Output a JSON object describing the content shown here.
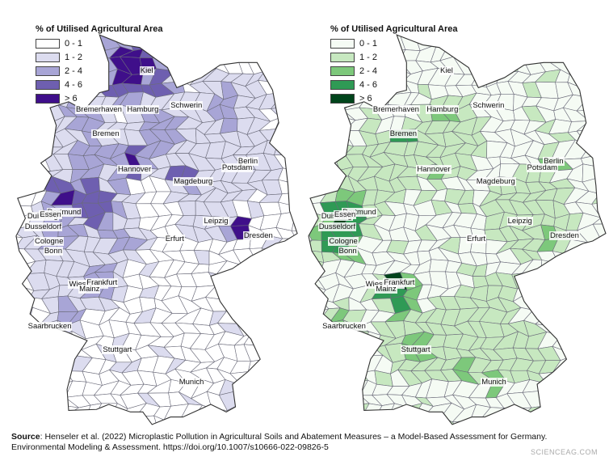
{
  "legend": {
    "title": "% of Utilised Agricultural Area",
    "classes": [
      "0 - 1",
      "1 - 2",
      "2 - 4",
      "4 - 6",
      "> 6"
    ]
  },
  "palettes": {
    "purple": [
      "#ffffff",
      "#dcdcef",
      "#a8a5d6",
      "#6e5fb0",
      "#3f0f8a"
    ],
    "green": [
      "#f5fbf4",
      "#c7e8c0",
      "#7dc87b",
      "#2f9a55",
      "#00441b"
    ]
  },
  "maps": [
    {
      "id": "left",
      "cities": [
        {
          "name": "Kiel",
          "lon": 10.13,
          "lat": 54.32
        },
        {
          "name": "Hamburg",
          "lon": 10.0,
          "lat": 53.55
        },
        {
          "name": "Schwerin",
          "lon": 11.41,
          "lat": 53.63
        },
        {
          "name": "Bremerhaven",
          "lon": 8.58,
          "lat": 53.55
        },
        {
          "name": "Bremen",
          "lon": 8.8,
          "lat": 53.08
        },
        {
          "name": "Berlin",
          "lon": 13.4,
          "lat": 52.52
        },
        {
          "name": "Hannover",
          "lon": 9.73,
          "lat": 52.37
        },
        {
          "name": "Potsdam",
          "lon": 13.06,
          "lat": 52.4
        },
        {
          "name": "Magdeburg",
          "lon": 11.63,
          "lat": 52.13
        },
        {
          "name": "Duisburg",
          "lon": 6.76,
          "lat": 51.43
        },
        {
          "name": "Dortmund",
          "lon": 7.46,
          "lat": 51.51
        },
        {
          "name": "Essen",
          "lon": 7.01,
          "lat": 51.46
        },
        {
          "name": "Leipzig",
          "lon": 12.37,
          "lat": 51.34
        },
        {
          "name": "Dusseldorf",
          "lon": 6.77,
          "lat": 51.23
        },
        {
          "name": "Dresden",
          "lon": 13.74,
          "lat": 51.05
        },
        {
          "name": "Erfurt",
          "lon": 11.03,
          "lat": 50.98
        },
        {
          "name": "Cologne",
          "lon": 6.96,
          "lat": 50.94
        },
        {
          "name": "Bonn",
          "lon": 7.1,
          "lat": 50.74
        },
        {
          "name": "Wiesbaden",
          "lon": 8.24,
          "lat": 50.08
        },
        {
          "name": "Frankfurt",
          "lon": 8.68,
          "lat": 50.11
        },
        {
          "name": "Mainz",
          "lon": 8.27,
          "lat": 49.99
        },
        {
          "name": "Saarbrucken",
          "lon": 6.99,
          "lat": 49.24
        },
        {
          "name": "Stuttgart",
          "lon": 9.18,
          "lat": 48.78
        },
        {
          "name": "Munich",
          "lon": 11.58,
          "lat": 48.14
        }
      ]
    },
    {
      "id": "right",
      "cities": [
        {
          "name": "Kiel",
          "lon": 10.13,
          "lat": 54.32
        },
        {
          "name": "Hamburg",
          "lon": 10.0,
          "lat": 53.55
        },
        {
          "name": "Schwerin",
          "lon": 11.41,
          "lat": 53.63
        },
        {
          "name": "Bremerhaven",
          "lon": 8.58,
          "lat": 53.55
        },
        {
          "name": "Bremen",
          "lon": 8.8,
          "lat": 53.08
        },
        {
          "name": "Berlin",
          "lon": 13.4,
          "lat": 52.52
        },
        {
          "name": "Hannover",
          "lon": 9.73,
          "lat": 52.37
        },
        {
          "name": "Potsdam",
          "lon": 13.06,
          "lat": 52.4
        },
        {
          "name": "Magdeburg",
          "lon": 11.63,
          "lat": 52.13
        },
        {
          "name": "Duisburg",
          "lon": 6.76,
          "lat": 51.43
        },
        {
          "name": "Dortmund",
          "lon": 7.46,
          "lat": 51.51
        },
        {
          "name": "Essen",
          "lon": 7.01,
          "lat": 51.46
        },
        {
          "name": "Leipzig",
          "lon": 12.37,
          "lat": 51.34
        },
        {
          "name": "Dusseldorf",
          "lon": 6.77,
          "lat": 51.23
        },
        {
          "name": "Dresden",
          "lon": 13.74,
          "lat": 51.05
        },
        {
          "name": "Erfurt",
          "lon": 11.03,
          "lat": 50.98
        },
        {
          "name": "Cologne",
          "lon": 6.96,
          "lat": 50.94
        },
        {
          "name": "Bonn",
          "lon": 7.1,
          "lat": 50.74
        },
        {
          "name": "Wiesbaden",
          "lon": 8.24,
          "lat": 50.08
        },
        {
          "name": "Frankfurt",
          "lon": 8.68,
          "lat": 50.11
        },
        {
          "name": "Mainz",
          "lon": 8.27,
          "lat": 49.99
        },
        {
          "name": "Saarbrucken",
          "lon": 6.99,
          "lat": 49.24
        },
        {
          "name": "Stuttgart",
          "lon": 9.18,
          "lat": 48.78
        },
        {
          "name": "Munich",
          "lon": 11.58,
          "lat": 48.14
        }
      ]
    }
  ],
  "source": {
    "label": "Source",
    "line1": ": Henseler et al. (2022) Microplastic Pollution in Agricultural Soils and Abatement Measures – a Model-Based Assessment for Germany.",
    "line2": "Environmental Modeling & Assessment. https://doi.org/10.1007/s10666-022-09826-5"
  },
  "watermark": "SCIENCEAG.COM"
}
